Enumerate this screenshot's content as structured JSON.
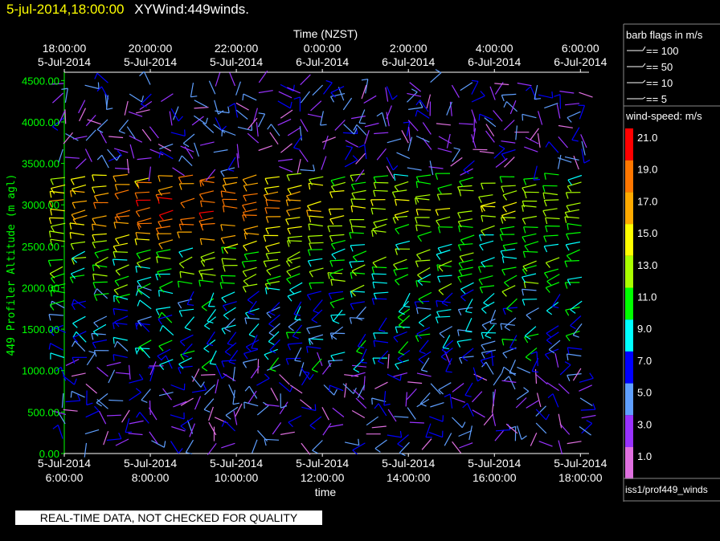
{
  "header": {
    "timestamp": "5-jul-2014,18:00:00",
    "title": "XYWind:449winds."
  },
  "warning": "REAL-TIME DATA, NOT CHECKED FOR QUALITY",
  "source": "iss1/prof449_winds",
  "colors": {
    "axis": "#00ff00",
    "text": "#ffffff",
    "background": "#000000"
  },
  "legend": {
    "barb_title": "barb flags in m/s",
    "barbs": [
      "== 100",
      "== 50",
      "== 10",
      "== 5"
    ],
    "speed_title": "wind-speed: m/s",
    "speed_labels": [
      "21.0",
      "19.0",
      "17.0",
      "15.0",
      "13.0",
      "11.0",
      "9.0",
      "7.0",
      "5.0",
      "3.0",
      "1.0"
    ],
    "speed_colors": [
      "#ff0000",
      "#ff7700",
      "#ffaa00",
      "#ffff00",
      "#aaff00",
      "#00ff00",
      "#00ffff",
      "#0000ff",
      "#5f9fff",
      "#9932ff",
      "#e070e0"
    ]
  },
  "chart_data": {
    "type": "scatter",
    "title": "XYWind:449winds.",
    "xlabel": "time",
    "x2label": "Time (NZST)",
    "ylabel": "449 Profiler Altitude (m agl)",
    "ylim": [
      0,
      4600
    ],
    "xlim_hours": [
      6,
      18.2
    ],
    "y_ticks": [
      "0.00",
      "500.00",
      "1000.00",
      "1500.00",
      "2000.00",
      "2500.00",
      "3000.00",
      "3500.00",
      "4000.00",
      "4500.00"
    ],
    "x_ticks": [
      {
        "date": "5-Jul-2014",
        "time": "6:00:00"
      },
      {
        "date": "5-Jul-2014",
        "time": "8:00:00"
      },
      {
        "date": "5-Jul-2014",
        "time": "10:00:00"
      },
      {
        "date": "5-Jul-2014",
        "time": "12:00:00"
      },
      {
        "date": "5-Jul-2014",
        "time": "14:00:00"
      },
      {
        "date": "5-Jul-2014",
        "time": "16:00:00"
      },
      {
        "date": "5-Jul-2014",
        "time": "18:00:00"
      }
    ],
    "x2_ticks": [
      {
        "time": "18:00:00",
        "date": "5-Jul-2014"
      },
      {
        "time": "20:00:00",
        "date": "5-Jul-2014"
      },
      {
        "time": "22:00:00",
        "date": "5-Jul-2014"
      },
      {
        "time": "0:00:00",
        "date": "6-Jul-2014"
      },
      {
        "time": "2:00:00",
        "date": "6-Jul-2014"
      },
      {
        "time": "4:00:00",
        "date": "6-Jul-2014"
      },
      {
        "time": "6:00:00",
        "date": "6-Jul-2014"
      }
    ],
    "grid": false,
    "wind_barbs": {
      "times_start_h": 6.0,
      "interval_min": 30,
      "count_times": 25,
      "alt_start_m": 150,
      "alt_step_m": 100,
      "count_levels": 44
    }
  }
}
